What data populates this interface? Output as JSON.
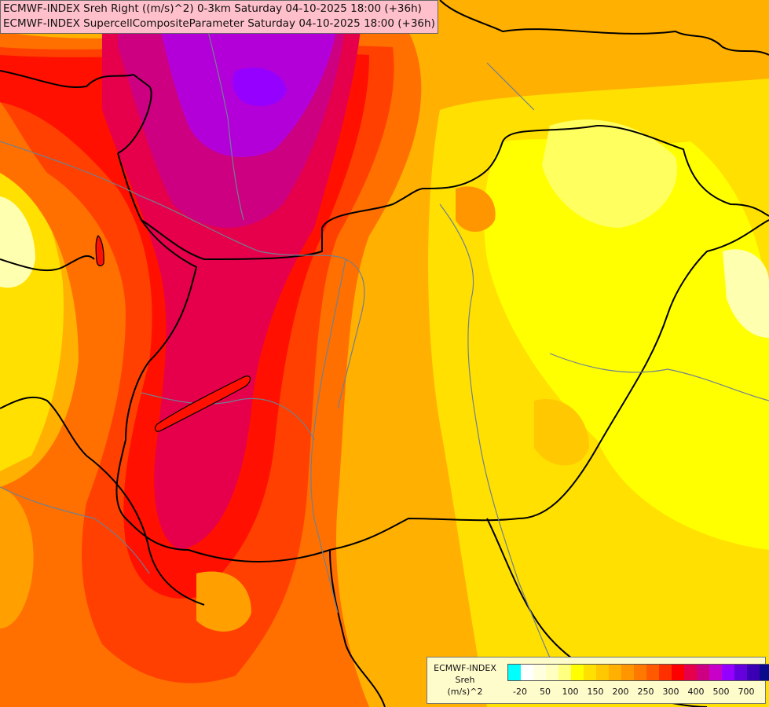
{
  "title": {
    "line1": "ECMWF-INDEX Sreh Right ((m/s)^2) 0-3km Saturday 04-10-2025 18:00 (+36h)",
    "line2": "ECMWF-INDEX SupercellCompositeParameter Saturday 04-10-2025 18:00 (+36h)"
  },
  "legend": {
    "title_line1": "ECMWF-INDEX",
    "title_line2": "Sreh",
    "title_line3": "(m/s)^2",
    "colors": [
      "#00ffff",
      "#ffffff",
      "#ffffe0",
      "#ffffc0",
      "#ffff80",
      "#ffff00",
      "#ffe000",
      "#ffc800",
      "#ffb000",
      "#ff9600",
      "#ff7800",
      "#ff5a00",
      "#ff3000",
      "#ff0000",
      "#e6004c",
      "#cc0080",
      "#c800c8",
      "#9600ff",
      "#6400dc",
      "#3c00b4",
      "#0a0a8c"
    ],
    "ticks": [
      "-20",
      "50",
      "100",
      "150",
      "200",
      "250",
      "300",
      "400",
      "500",
      "700"
    ]
  },
  "map_colors": {
    "low": "#ffffb0",
    "yellow": "#ffff00",
    "gold": "#ffd000",
    "orange": "#ffa000",
    "dark_orange": "#ff7000",
    "red_orange": "#ff4000",
    "red": "#ff1000",
    "crimson": "#e6004c",
    "magenta": "#cc0080",
    "purple": "#b400d8",
    "violet": "#9600ff",
    "border": "#000000",
    "river": "#708090"
  }
}
